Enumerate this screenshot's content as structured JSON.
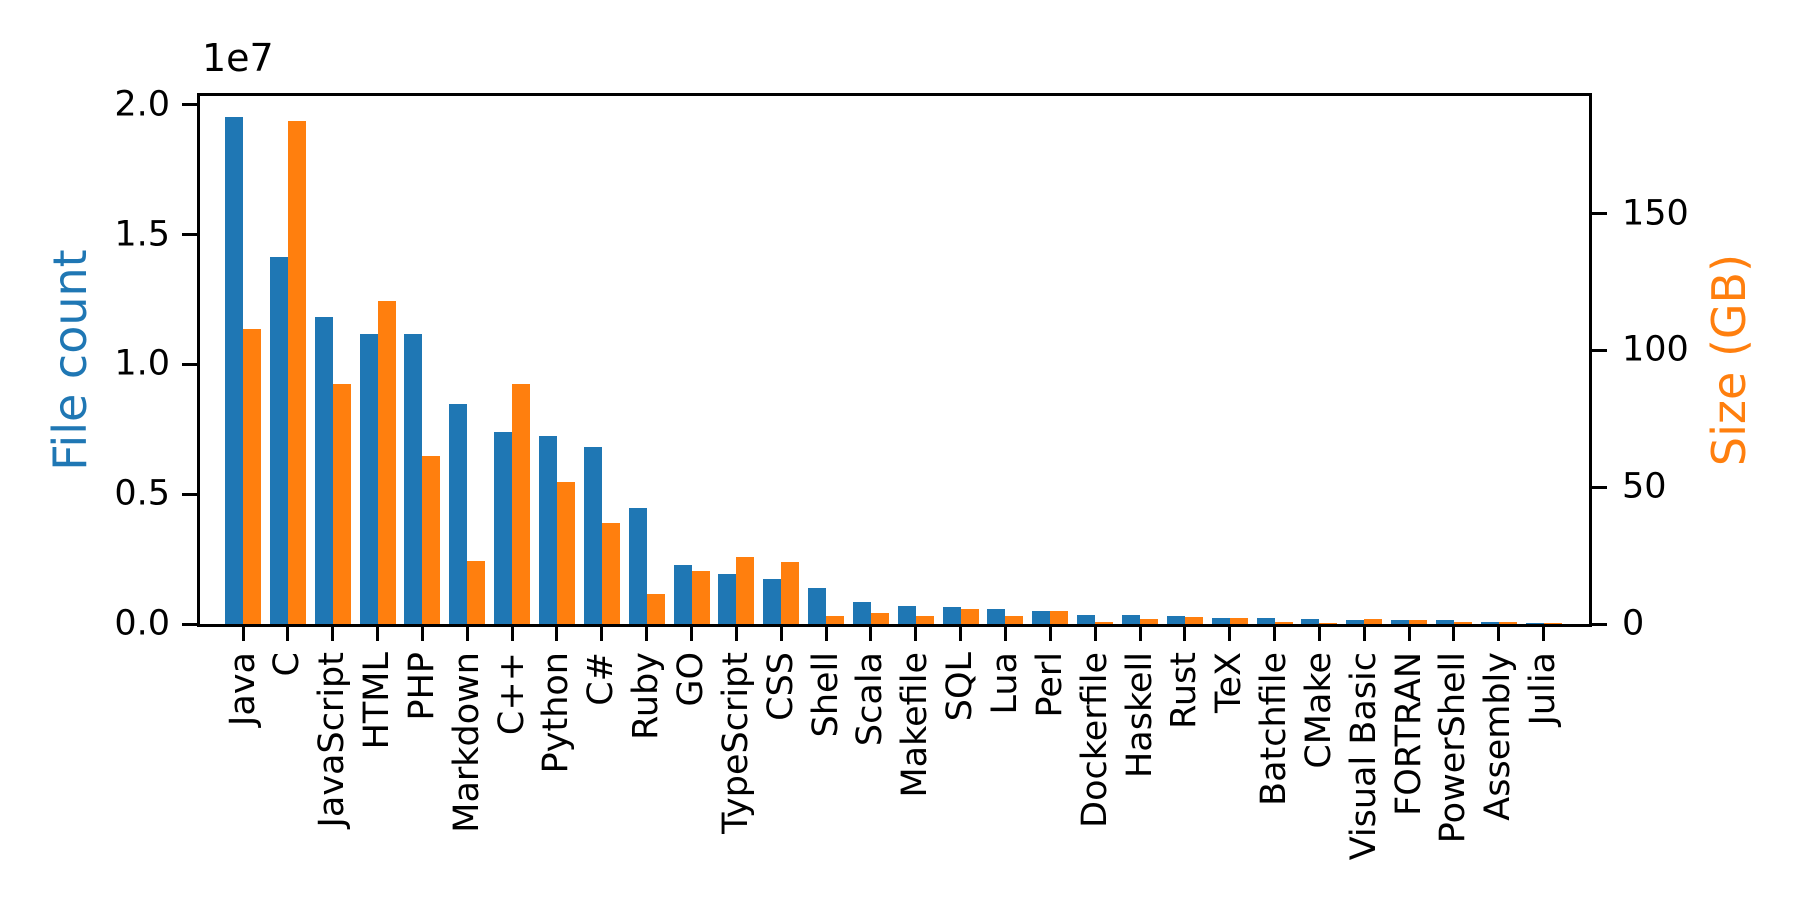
{
  "figure": {
    "offset_label": "1e7",
    "axes": {
      "left": {
        "label": "File count",
        "color": "#1f77b4",
        "tick_labels": [
          "0.0",
          "0.5",
          "1.0",
          "1.5",
          "2.0"
        ],
        "tick_values": [
          0,
          5000000,
          10000000,
          15000000,
          20000000
        ],
        "max": 20340000
      },
      "right": {
        "label": "Size (GB)",
        "color": "#ff7f0e",
        "tick_labels": [
          "0",
          "50",
          "100",
          "150"
        ],
        "tick_values": [
          0,
          50,
          100,
          150
        ],
        "max": 193
      }
    }
  },
  "chart_data": {
    "type": "bar",
    "title": "",
    "xlabel": "",
    "ylabel_left": "File count",
    "ylabel_right": "Size (GB)",
    "offset_text": "1e7",
    "ylim_left": [
      0,
      20340000
    ],
    "ylim_right": [
      0,
      193
    ],
    "xtick_rotation": 90,
    "grid": false,
    "legend": "none",
    "categories": [
      "Java",
      "C",
      "JavaScript",
      "HTML",
      "PHP",
      "Markdown",
      "C++",
      "Python",
      "C#",
      "Ruby",
      "GO",
      "TypeScript",
      "CSS",
      "Shell",
      "Scala",
      "Makefile",
      "SQL",
      "Lua",
      "Perl",
      "Dockerfile",
      "Haskell",
      "Rust",
      "TeX",
      "Batchfile",
      "CMake",
      "Visual Basic",
      "FORTRAN",
      "PowerShell",
      "Assembly",
      "Julia"
    ],
    "series": [
      {
        "name": "File count",
        "axis": "left",
        "color": "#1f77b4",
        "values": [
          19548190,
          14143113,
          11839883,
          11178557,
          11177610,
          8464626,
          7380520,
          7226626,
          6811652,
          4473331,
          2265436,
          1940406,
          1734406,
          1385648,
          835755,
          679430,
          656671,
          578554,
          497949,
          366505,
          340380,
          322431,
          251015,
          236945,
          175282,
          155652,
          142038,
          136846,
          82905,
          58317
        ]
      },
      {
        "name": "Size (GB)",
        "axis": "right",
        "color": "#ff7f0e",
        "values": [
          107.7,
          183.83,
          87.82,
          118.12,
          61.41,
          23.09,
          87.73,
          52.03,
          36.83,
          10.95,
          19.28,
          24.59,
          22.67,
          3.01,
          3.87,
          2.92,
          5.67,
          2.81,
          4.7,
          0.71,
          1.85,
          2.68,
          2.15,
          0.7,
          0.54,
          1.91,
          1.62,
          0.69,
          0.78,
          0.29
        ]
      }
    ]
  }
}
